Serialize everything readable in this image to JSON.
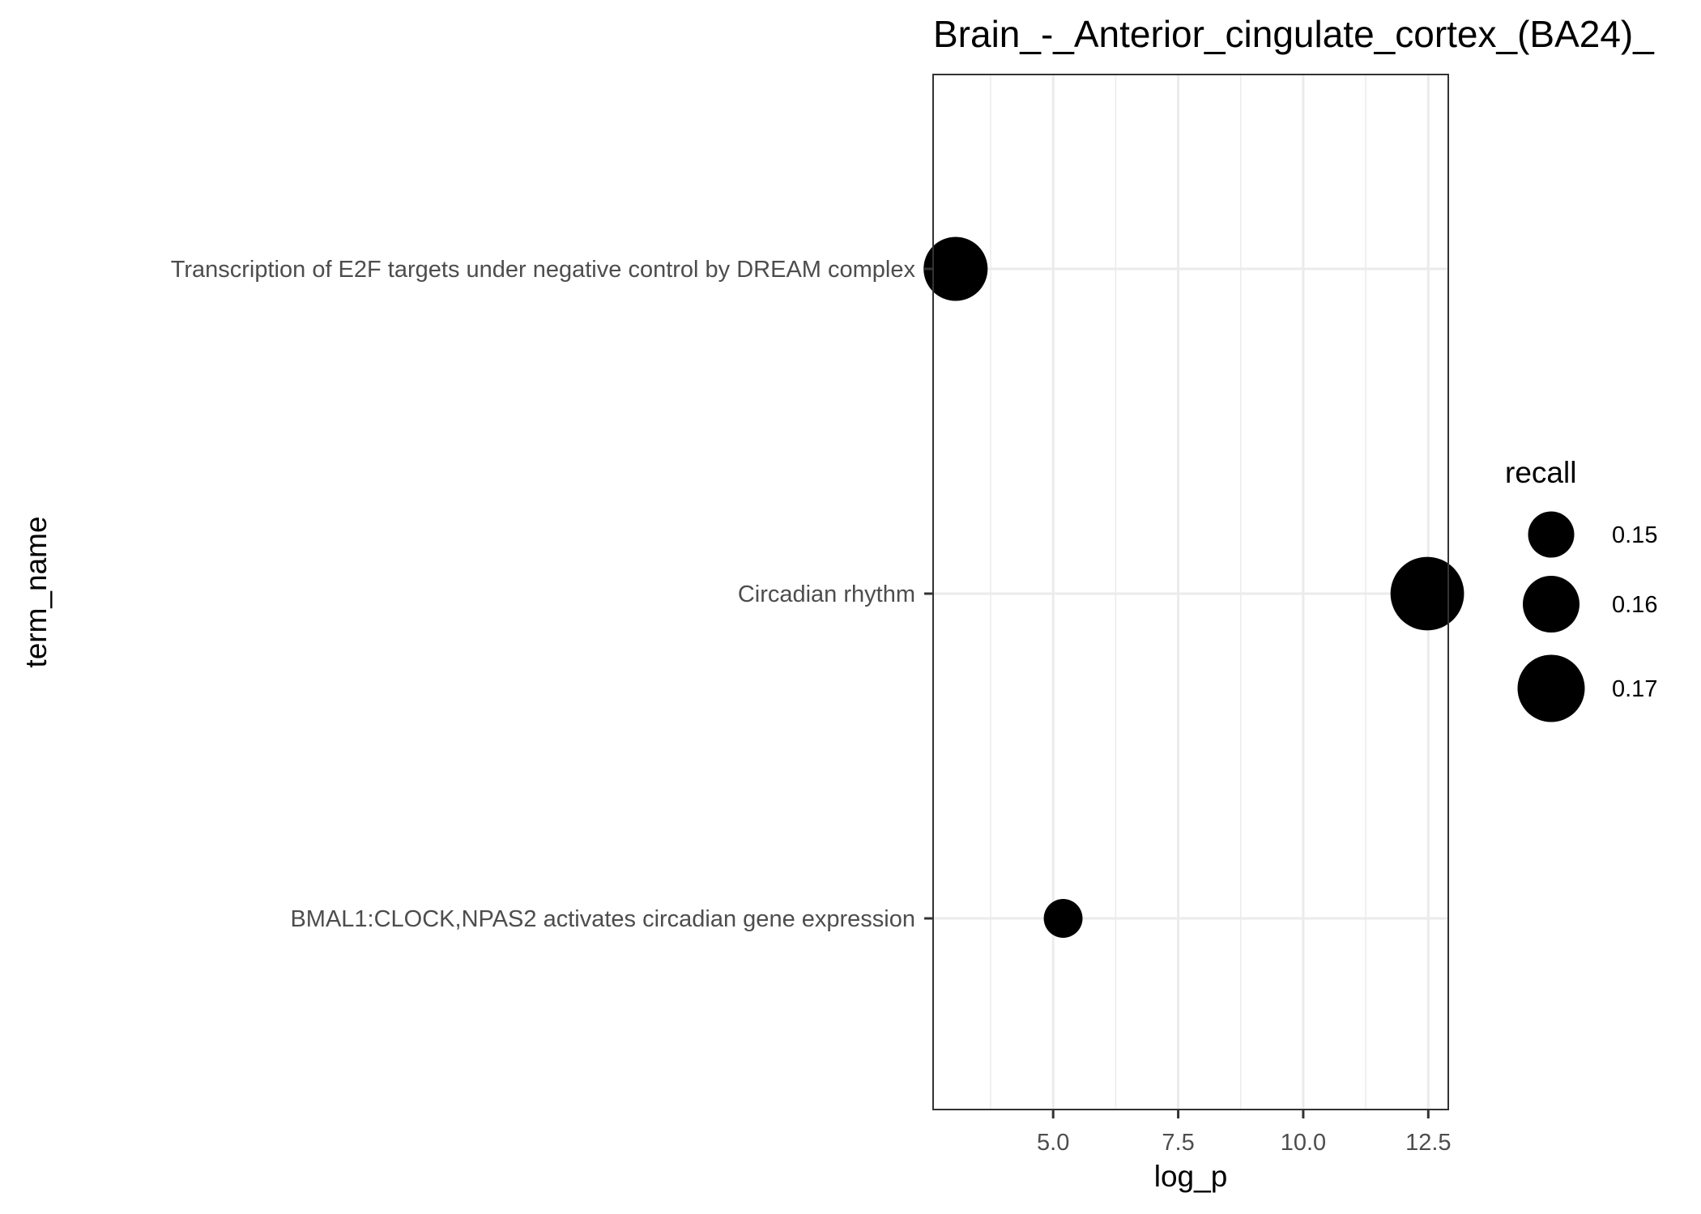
{
  "chart_data": {
    "type": "scatter",
    "title": "Brain_-_Anterior_cingulate_cortex_(BA24)_",
    "xlabel": "log_p",
    "ylabel": "term_name",
    "xlim": [
      2.6,
      12.9
    ],
    "x_ticks": [
      "5.0",
      "7.5",
      "10.0",
      "12.5"
    ],
    "x_tick_values": [
      5.0,
      7.5,
      10.0,
      12.5
    ],
    "categories": [
      "Transcription of E2F targets under negative control by DREAM complex",
      "Circadian rhythm",
      "BMAL1:CLOCK,NPAS2 activates circadian gene expression"
    ],
    "points": [
      {
        "term_name": "Transcription of E2F targets under negative control by DREAM complex",
        "log_p": 3.05,
        "recall": 0.167
      },
      {
        "term_name": "Circadian rhythm",
        "log_p": 12.48,
        "recall": 0.176
      },
      {
        "term_name": "BMAL1:CLOCK,NPAS2 activates circadian gene expression",
        "log_p": 5.2,
        "recall": 0.143
      }
    ],
    "grid": true,
    "legend": {
      "title": "recall",
      "position": "right",
      "entries": [
        {
          "label": "0.15",
          "value": 0.15
        },
        {
          "label": "0.16",
          "value": 0.16
        },
        {
          "label": "0.17",
          "value": 0.17
        }
      ]
    },
    "point_color": "#000000"
  }
}
